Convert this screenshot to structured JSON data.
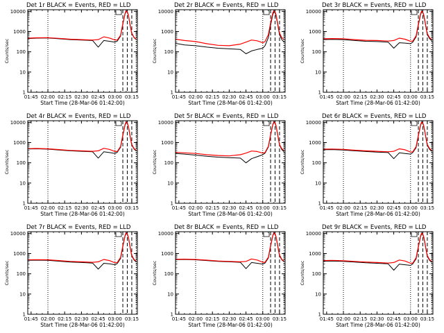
{
  "figure": {
    "xaxis_label": "Start Time (28-Mar-06 01:42:00)",
    "yaxis_label": "Counts/sec",
    "x_tick_labels": [
      "01:45",
      "02:00",
      "02:15",
      "02:30",
      "02:45",
      "03:00",
      "03:15"
    ],
    "y_tick_labels": [
      "1",
      "10",
      "100",
      "1000",
      "10000"
    ],
    "colors": {
      "events": "#000000",
      "lld": "#ff0000",
      "markers": "#000000"
    }
  },
  "chart_data": [
    {
      "type": "line",
      "title": "Det 1r BLACK = Events, RED = LLD",
      "xlabel": "Start Time (28-Mar-06 01:42:00)",
      "ylabel": "Counts/sec",
      "yscale": "log",
      "xlim": [
        "01:42",
        "03:20"
      ],
      "ylim": [
        1,
        12000
      ],
      "x": [
        "01:42",
        "01:50",
        "02:00",
        "02:10",
        "02:20",
        "02:30",
        "02:40",
        "02:45",
        "02:50",
        "02:55",
        "03:00",
        "03:02",
        "03:05",
        "03:07",
        "03:09",
        "03:10",
        "03:11",
        "03:12",
        "03:13",
        "03:14",
        "03:15",
        "03:17",
        "03:19"
      ],
      "series": [
        {
          "name": "BLACK = Events",
          "color": "#000000",
          "values": [
            450,
            470,
            480,
            440,
            400,
            380,
            360,
            170,
            360,
            330,
            300,
            340,
            600,
            2200,
            7500,
            10000,
            9000,
            6000,
            3000,
            1500,
            800,
            500,
            400
          ]
        },
        {
          "name": "RED = LLD",
          "color": "#ff0000",
          "values": [
            470,
            490,
            500,
            460,
            420,
            400,
            380,
            400,
            550,
            480,
            380,
            380,
            650,
            2400,
            8000,
            11000,
            9500,
            6500,
            3200,
            1600,
            850,
            520,
            420
          ]
        }
      ],
      "markers": {
        "dotted": [
          "02:00",
          "03:00",
          "03:19"
        ],
        "dashed": [
          "03:07",
          "03:11",
          "03:15"
        ]
      }
    },
    {
      "type": "line",
      "title": "Det 2r BLACK = Events, RED = LLD",
      "xlabel": "Start Time (28-Mar-06 01:42:00)",
      "ylabel": "Counts/sec",
      "yscale": "log",
      "xlim": [
        "01:42",
        "03:20"
      ],
      "ylim": [
        1,
        12000
      ],
      "x": [
        "01:42",
        "01:50",
        "02:00",
        "02:10",
        "02:20",
        "02:30",
        "02:40",
        "02:45",
        "02:50",
        "02:55",
        "03:00",
        "03:02",
        "03:05",
        "03:07",
        "03:09",
        "03:10",
        "03:11",
        "03:12",
        "03:13",
        "03:14",
        "03:15",
        "03:17",
        "03:19"
      ],
      "series": [
        {
          "name": "BLACK = Events",
          "color": "#000000",
          "values": [
            260,
            220,
            200,
            170,
            150,
            140,
            130,
            80,
            110,
            130,
            150,
            200,
            500,
            2000,
            7000,
            9500,
            8500,
            5500,
            2800,
            1400,
            700,
            400,
            300
          ]
        },
        {
          "name": "RED = LLD",
          "color": "#ff0000",
          "values": [
            420,
            360,
            320,
            250,
            210,
            200,
            240,
            300,
            380,
            350,
            280,
            320,
            700,
            2600,
            8500,
            11000,
            9500,
            6500,
            3200,
            1600,
            850,
            500,
            400
          ]
        }
      ],
      "markers": {
        "dotted": [
          "02:00",
          "03:00",
          "03:19"
        ],
        "dashed": [
          "03:07",
          "03:11",
          "03:15"
        ]
      }
    },
    {
      "type": "line",
      "title": "Det 3r BLACK = Events, RED = LLD",
      "xlabel": "Start Time (28-Mar-06 01:42:00)",
      "ylabel": "Counts/sec",
      "yscale": "log",
      "xlim": [
        "01:42",
        "03:20"
      ],
      "ylim": [
        1,
        12000
      ],
      "x": [
        "01:42",
        "01:50",
        "02:00",
        "02:10",
        "02:20",
        "02:30",
        "02:40",
        "02:45",
        "02:50",
        "02:55",
        "03:00",
        "03:02",
        "03:05",
        "03:07",
        "03:09",
        "03:10",
        "03:11",
        "03:12",
        "03:13",
        "03:14",
        "03:15",
        "03:17",
        "03:19"
      ],
      "series": [
        {
          "name": "BLACK = Events",
          "color": "#000000",
          "values": [
            400,
            410,
            400,
            360,
            330,
            320,
            300,
            150,
            280,
            270,
            250,
            300,
            550,
            2000,
            7000,
            9500,
            8500,
            5500,
            2800,
            1400,
            700,
            450,
            350
          ]
        },
        {
          "name": "RED = LLD",
          "color": "#ff0000",
          "values": [
            440,
            450,
            440,
            400,
            370,
            360,
            340,
            360,
            470,
            420,
            330,
            340,
            620,
            2300,
            7800,
            10500,
            9200,
            6200,
            3100,
            1500,
            800,
            500,
            400
          ]
        }
      ],
      "markers": {
        "dotted": [
          "02:00",
          "03:00",
          "03:19"
        ],
        "dashed": [
          "03:07",
          "03:11",
          "03:15"
        ]
      }
    },
    {
      "type": "line",
      "title": "Det 4r BLACK = Events, RED = LLD",
      "xlabel": "Start Time (28-Mar-06 01:42:00)",
      "ylabel": "Counts/sec",
      "yscale": "log",
      "xlim": [
        "01:42",
        "03:20"
      ],
      "ylim": [
        1,
        12000
      ],
      "x": [
        "01:42",
        "01:50",
        "02:00",
        "02:10",
        "02:20",
        "02:30",
        "02:40",
        "02:45",
        "02:50",
        "02:55",
        "03:00",
        "03:02",
        "03:05",
        "03:07",
        "03:09",
        "03:10",
        "03:11",
        "03:12",
        "03:13",
        "03:14",
        "03:15",
        "03:17",
        "03:19"
      ],
      "series": [
        {
          "name": "BLACK = Events",
          "color": "#000000",
          "values": [
            480,
            490,
            470,
            430,
            390,
            370,
            350,
            170,
            350,
            320,
            290,
            330,
            580,
            2100,
            7300,
            9800,
            8800,
            5800,
            2900,
            1450,
            750,
            480,
            380
          ]
        },
        {
          "name": "RED = LLD",
          "color": "#ff0000",
          "values": [
            500,
            510,
            490,
            450,
            410,
            390,
            370,
            390,
            520,
            460,
            360,
            360,
            640,
            2350,
            7900,
            10800,
            9400,
            6300,
            3150,
            1550,
            820,
            510,
            410
          ]
        }
      ],
      "markers": {
        "dotted": [
          "02:00",
          "03:00",
          "03:19"
        ],
        "dashed": [
          "03:07",
          "03:11",
          "03:15"
        ]
      }
    },
    {
      "type": "line",
      "title": "Det 5r BLACK = Events, RED = LLD",
      "xlabel": "Start Time (28-Mar-06 01:42:00)",
      "ylabel": "Counts/sec",
      "yscale": "log",
      "xlim": [
        "01:42",
        "03:20"
      ],
      "ylim": [
        1,
        12000
      ],
      "x": [
        "01:42",
        "01:50",
        "02:00",
        "02:10",
        "02:20",
        "02:30",
        "02:40",
        "02:45",
        "02:50",
        "02:55",
        "03:00",
        "03:02",
        "03:05",
        "03:07",
        "03:09",
        "03:10",
        "03:11",
        "03:12",
        "03:13",
        "03:14",
        "03:15",
        "03:17",
        "03:19"
      ],
      "series": [
        {
          "name": "BLACK = Events",
          "color": "#000000",
          "values": [
            290,
            270,
            240,
            210,
            190,
            180,
            170,
            100,
            160,
            200,
            250,
            300,
            600,
            2200,
            7500,
            10000,
            9000,
            6000,
            3000,
            1500,
            750,
            450,
            350
          ]
        },
        {
          "name": "RED = LLD",
          "color": "#ff0000",
          "values": [
            330,
            310,
            290,
            250,
            230,
            220,
            250,
            300,
            380,
            360,
            300,
            320,
            650,
            2400,
            8000,
            11000,
            9500,
            6500,
            3200,
            1600,
            800,
            500,
            400
          ]
        }
      ],
      "markers": {
        "dotted": [
          "02:00",
          "03:00",
          "03:19"
        ],
        "dashed": [
          "03:07",
          "03:11",
          "03:15"
        ]
      }
    },
    {
      "type": "line",
      "title": "Det 6r BLACK = Events, RED = LLD",
      "xlabel": "Start Time (28-Mar-06 01:42:00)",
      "ylabel": "Counts/sec",
      "yscale": "log",
      "xlim": [
        "01:42",
        "03:20"
      ],
      "ylim": [
        1,
        12000
      ],
      "x": [
        "01:42",
        "01:50",
        "02:00",
        "02:10",
        "02:20",
        "02:30",
        "02:40",
        "02:45",
        "02:50",
        "02:55",
        "03:00",
        "03:02",
        "03:05",
        "03:07",
        "03:09",
        "03:10",
        "03:11",
        "03:12",
        "03:13",
        "03:14",
        "03:15",
        "03:17",
        "03:19"
      ],
      "series": [
        {
          "name": "BLACK = Events",
          "color": "#000000",
          "values": [
            440,
            450,
            430,
            390,
            360,
            340,
            320,
            160,
            310,
            290,
            270,
            320,
            560,
            2050,
            7200,
            9700,
            8700,
            5700,
            2850,
            1420,
            720,
            460,
            360
          ]
        },
        {
          "name": "RED = LLD",
          "color": "#ff0000",
          "values": [
            470,
            480,
            460,
            420,
            390,
            370,
            350,
            370,
            490,
            440,
            340,
            350,
            630,
            2300,
            7800,
            10600,
            9300,
            6250,
            3120,
            1520,
            810,
            505,
            405
          ]
        }
      ],
      "markers": {
        "dotted": [
          "02:00",
          "03:00",
          "03:19"
        ],
        "dashed": [
          "03:07",
          "03:11",
          "03:15"
        ]
      }
    },
    {
      "type": "line",
      "title": "Det 7r BLACK = Events, RED = LLD",
      "xlabel": "Start Time (28-Mar-06 01:42:00)",
      "ylabel": "Counts/sec",
      "yscale": "log",
      "xlim": [
        "01:42",
        "03:20"
      ],
      "ylim": [
        1,
        12000
      ],
      "x": [
        "01:42",
        "01:50",
        "02:00",
        "02:10",
        "02:20",
        "02:30",
        "02:40",
        "02:45",
        "02:50",
        "02:55",
        "03:00",
        "03:02",
        "03:05",
        "03:07",
        "03:09",
        "03:10",
        "03:11",
        "03:12",
        "03:13",
        "03:14",
        "03:15",
        "03:17",
        "03:19"
      ],
      "series": [
        {
          "name": "BLACK = Events",
          "color": "#000000",
          "values": [
            460,
            470,
            460,
            420,
            380,
            360,
            340,
            170,
            330,
            310,
            280,
            320,
            570,
            2100,
            7400,
            9900,
            8900,
            5900,
            2950,
            1480,
            760,
            480,
            380
          ]
        },
        {
          "name": "RED = LLD",
          "color": "#ff0000",
          "values": [
            490,
            500,
            490,
            450,
            410,
            390,
            370,
            390,
            510,
            450,
            350,
            360,
            640,
            2350,
            8000,
            10900,
            9500,
            6400,
            3180,
            1580,
            830,
            515,
            415
          ]
        }
      ],
      "markers": {
        "dotted": [
          "02:00",
          "03:00",
          "03:19"
        ],
        "dashed": [
          "03:07",
          "03:11",
          "03:15"
        ]
      }
    },
    {
      "type": "line",
      "title": "Det 8r BLACK = Events, RED = LLD",
      "xlabel": "Start Time (28-Mar-06 01:42:00)",
      "ylabel": "Counts/sec",
      "yscale": "log",
      "xlim": [
        "01:42",
        "03:20"
      ],
      "ylim": [
        1,
        12000
      ],
      "x": [
        "01:42",
        "01:50",
        "02:00",
        "02:10",
        "02:20",
        "02:30",
        "02:40",
        "02:45",
        "02:50",
        "02:55",
        "03:00",
        "03:02",
        "03:05",
        "03:07",
        "03:09",
        "03:10",
        "03:11",
        "03:12",
        "03:13",
        "03:14",
        "03:15",
        "03:17",
        "03:19"
      ],
      "series": [
        {
          "name": "BLACK = Events",
          "color": "#000000",
          "values": [
            500,
            510,
            490,
            450,
            410,
            390,
            370,
            180,
            360,
            330,
            300,
            340,
            600,
            2200,
            7600,
            10000,
            9000,
            6000,
            3000,
            1500,
            780,
            490,
            390
          ]
        },
        {
          "name": "RED = LLD",
          "color": "#ff0000",
          "values": [
            520,
            530,
            510,
            470,
            430,
            410,
            390,
            410,
            540,
            480,
            370,
            370,
            660,
            2450,
            8100,
            11000,
            9600,
            6500,
            3250,
            1600,
            850,
            520,
            420
          ]
        }
      ],
      "markers": {
        "dotted": [
          "02:00",
          "03:00",
          "03:19"
        ],
        "dashed": [
          "03:07",
          "03:11",
          "03:15"
        ]
      }
    },
    {
      "type": "line",
      "title": "Det 9r BLACK = Events, RED = LLD",
      "xlabel": "Start Time (28-Mar-06 01:42:00)",
      "ylabel": "Counts/sec",
      "yscale": "log",
      "xlim": [
        "01:42",
        "03:20"
      ],
      "ylim": [
        1,
        12000
      ],
      "x": [
        "01:42",
        "01:50",
        "02:00",
        "02:10",
        "02:20",
        "02:30",
        "02:40",
        "02:45",
        "02:50",
        "02:55",
        "03:00",
        "03:02",
        "03:05",
        "03:07",
        "03:09",
        "03:10",
        "03:11",
        "03:12",
        "03:13",
        "03:14",
        "03:15",
        "03:17",
        "03:19"
      ],
      "series": [
        {
          "name": "BLACK = Events",
          "color": "#000000",
          "values": [
            420,
            430,
            410,
            380,
            350,
            330,
            310,
            150,
            300,
            280,
            260,
            310,
            550,
            2000,
            7000,
            9500,
            8500,
            5600,
            2800,
            1400,
            720,
            460,
            360
          ]
        },
        {
          "name": "RED = LLD",
          "color": "#ff0000",
          "values": [
            450,
            460,
            440,
            410,
            380,
            360,
            340,
            360,
            480,
            430,
            330,
            340,
            620,
            2250,
            7700,
            10500,
            9200,
            6200,
            3100,
            1500,
            800,
            500,
            400
          ]
        }
      ],
      "markers": {
        "dotted": [
          "02:00",
          "03:00",
          "03:19"
        ],
        "dashed": [
          "03:07",
          "03:11",
          "03:15"
        ]
      }
    }
  ]
}
